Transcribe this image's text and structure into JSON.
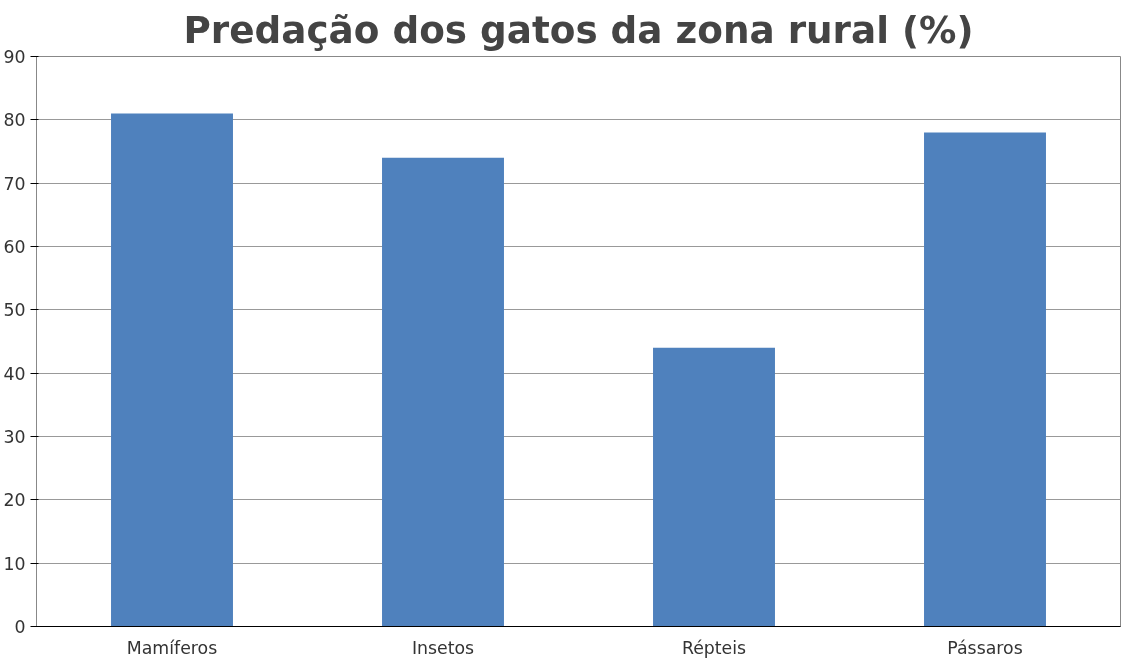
{
  "chart_data": {
    "type": "bar",
    "title": "Predação dos gatos da zona rural (%)",
    "categories": [
      "Mamíferos",
      "Insetos",
      "Répteis",
      "Pássaros"
    ],
    "values": [
      81,
      74,
      44,
      78
    ],
    "color": "#4f81bd",
    "ylim": [
      0,
      90
    ],
    "yticks": [
      0,
      10,
      20,
      30,
      40,
      50,
      60,
      70,
      80,
      90
    ],
    "grid": "y"
  }
}
